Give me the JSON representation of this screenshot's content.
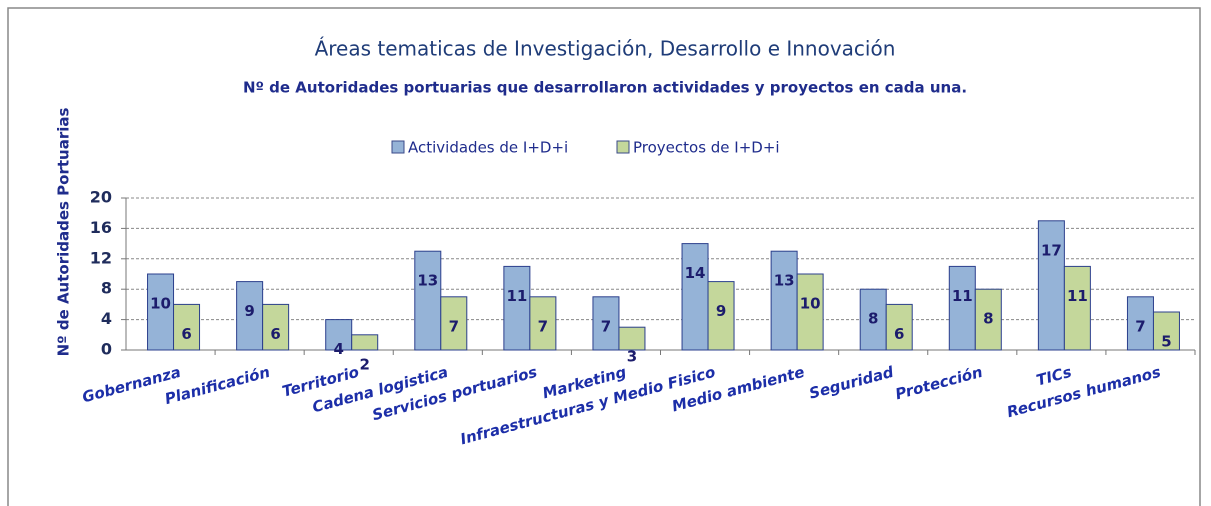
{
  "chart_data": {
    "type": "bar",
    "title": "Áreas tematicas de Investigación, Desarrollo e Innovación",
    "subtitle": "Nº de Autoridades portuarias que desarrollaron actividades y proyectos en cada una.",
    "y_label": "Nº de Autoridades Portuarias",
    "categories": [
      "Gobernanza",
      "Planificación",
      "Territorio",
      "Cadena logistica",
      "Servicios portuarios",
      "Marketing",
      "Infraestructuras y Medio Fisico",
      "Medio ambiente",
      "Seguridad",
      "Protección",
      "TICs",
      "Recursos humanos"
    ],
    "series": [
      {
        "name": "Actividades de I+D+i",
        "color": "#95b3d7",
        "values": [
          10,
          9,
          4,
          13,
          11,
          7,
          14,
          13,
          8,
          11,
          17,
          7
        ]
      },
      {
        "name": "Proyectos de I+D+i",
        "color": "#c4d79b",
        "values": [
          6,
          6,
          2,
          7,
          7,
          3,
          9,
          10,
          6,
          8,
          11,
          5
        ]
      }
    ],
    "ylim": [
      0,
      20
    ],
    "yticks": [
      0,
      4,
      8,
      12,
      16,
      20
    ],
    "grid": true,
    "legend": "top"
  }
}
